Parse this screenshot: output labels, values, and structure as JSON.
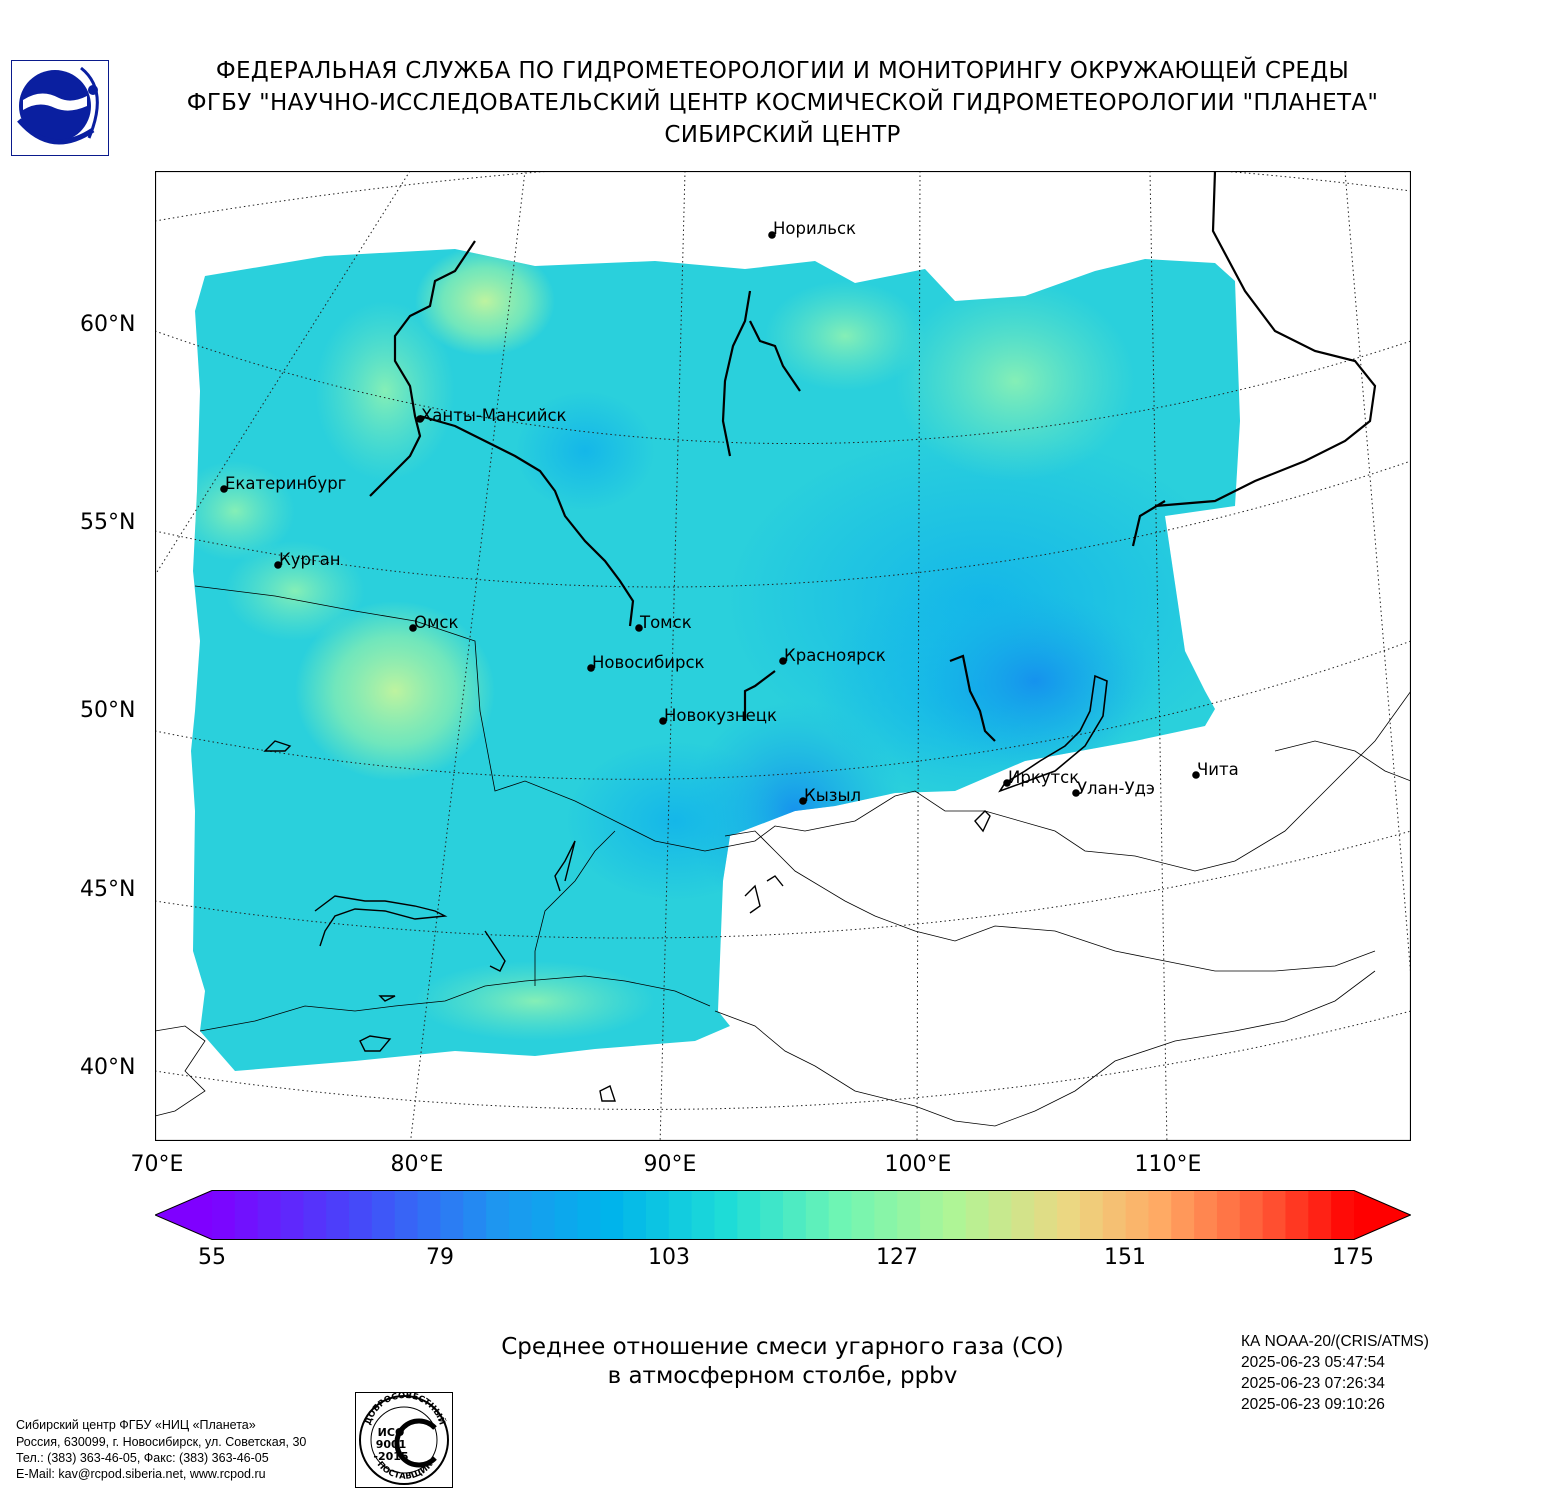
{
  "header": {
    "line1": "ФЕДЕРАЛЬНАЯ СЛУЖБА ПО ГИДРОМЕТЕОРОЛОГИИ И МОНИТОРИНГУ ОКРУЖАЮЩЕЙ СРЕДЫ",
    "line2": "ФГБУ \"НАУЧНО-ИССЛЕДОВАТЕЛЬСКИЙ ЦЕНТР КОСМИЧЕСКОЙ ГИДРОМЕТЕОРОЛОГИИ \"ПЛАНЕТА\"",
    "line3": "СИБИРСКИЙ ЦЕНТР"
  },
  "map": {
    "projection": "conic",
    "lat_labels": [
      "60°N",
      "55°N",
      "50°N",
      "45°N",
      "40°N"
    ],
    "lon_labels": [
      "70°E",
      "80°E",
      "90°E",
      "100°E",
      "110°E"
    ],
    "cities": [
      {
        "name": "Норильск"
      },
      {
        "name": "Ханты-Мансийск"
      },
      {
        "name": "Екатеринбург"
      },
      {
        "name": "Курган"
      },
      {
        "name": "Омск"
      },
      {
        "name": "Томск"
      },
      {
        "name": "Новосибирск"
      },
      {
        "name": "Красноярск"
      },
      {
        "name": "Новокузнецк"
      },
      {
        "name": "Иркутск"
      },
      {
        "name": "Чита"
      },
      {
        "name": "Улан-Удэ"
      },
      {
        "name": "Кызыл"
      }
    ],
    "colors": {
      "swath_base": "#2ad0dc",
      "swath_low": "#1aa6ec",
      "swath_high": "#7ff0b0",
      "swath_peak": "#bff59a"
    }
  },
  "colorbar": {
    "min": 55,
    "max": 175,
    "ticks": [
      "55",
      "79",
      "103",
      "127",
      "151",
      "175"
    ],
    "extend": "both"
  },
  "title": {
    "line1": "Среднее отношение смеси угарного газа (СО)",
    "line2": "в атмосферном столбе, ppbv"
  },
  "satellite": {
    "name": "КА NOAA-20/(CRIS/ATMS)",
    "passes": [
      "2025-06-23 05:47:54",
      "2025-06-23 07:26:34",
      "2025-06-23 09:10:26"
    ]
  },
  "contact": {
    "line1": "Сибирский центр ФГБУ «НИЦ «Планета»",
    "line2": "Россия, 630099, г. Новосибирск, ул. Советская, 30",
    "line3": "Тел.: (383) 363-46-05, Факс: (383) 363-46-05",
    "line4": "E-Mail: kav@rcpod.siberia.net, www.rcpod.ru"
  },
  "iso_badge": {
    "top_text": "ДОБРОСОВЕСТНЫЙ",
    "mid1": "ИСО",
    "mid2": "9001",
    "mid3": "-2015",
    "bottom_text": "ПОСТАВЩИК"
  }
}
